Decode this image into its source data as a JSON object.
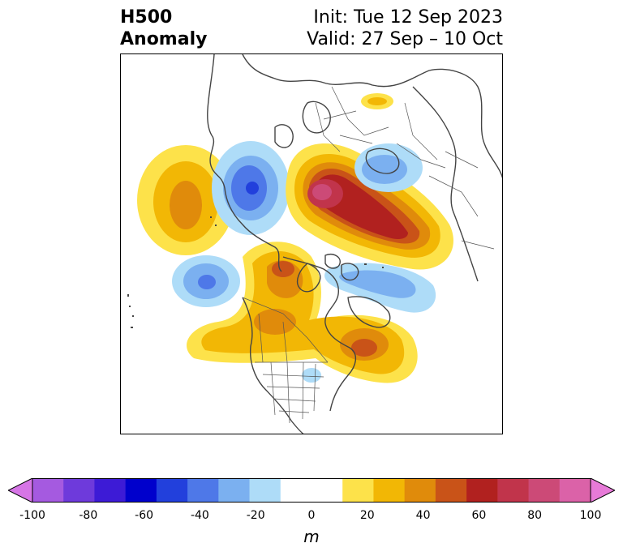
{
  "title": {
    "line1": "H500",
    "line2": "Anomaly",
    "init": "Init: Tue 12 Sep 2023",
    "valid": "Valid: 27 Sep – 10 Oct"
  },
  "colorbar": {
    "units": "m",
    "tick_labels": [
      "-100",
      "-80",
      "-60",
      "-40",
      "-20",
      "0",
      "20",
      "40",
      "60",
      "80",
      "100"
    ],
    "colors": [
      "#d675e6",
      "#a55ae0",
      "#6e3adb",
      "#3d1bd6",
      "#0000cc",
      "#2240dc",
      "#4e78e8",
      "#7bb0f0",
      "#aedcf8",
      "#ffffff",
      "#ffffff",
      "#fde24a",
      "#f2b705",
      "#e08b0b",
      "#c95318",
      "#b1211f",
      "#c1344b",
      "#cc4a77",
      "#db62a8",
      "#e77ad8"
    ]
  },
  "map": {
    "projection": "north-polar-stereographic",
    "variable": "500 hPa geopotential height anomaly"
  }
}
